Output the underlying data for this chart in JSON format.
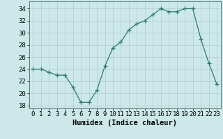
{
  "x": [
    0,
    1,
    2,
    3,
    4,
    5,
    6,
    7,
    8,
    9,
    10,
    11,
    12,
    13,
    14,
    15,
    16,
    17,
    18,
    19,
    20,
    21,
    22,
    23
  ],
  "y": [
    24,
    24,
    23.5,
    23,
    23,
    21,
    18.5,
    18.5,
    20.5,
    24.5,
    27.5,
    28.5,
    30.5,
    31.5,
    32,
    33,
    34,
    33.5,
    33.5,
    34,
    34,
    29,
    25,
    21.5
  ],
  "line_color": "#2d7a6a",
  "marker": "+",
  "marker_color": "#2d7a6a",
  "bg_color": "#cce8e8",
  "grid_color": "#b0cccc",
  "xlabel": "Humidex (Indice chaleur)",
  "xlabel_fontsize": 7.5,
  "ylabel_ticks": [
    18,
    20,
    22,
    24,
    26,
    28,
    30,
    32,
    34
  ],
  "xlim": [
    -0.5,
    23.5
  ],
  "ylim": [
    17.5,
    35.2
  ],
  "tick_fontsize": 6.5
}
